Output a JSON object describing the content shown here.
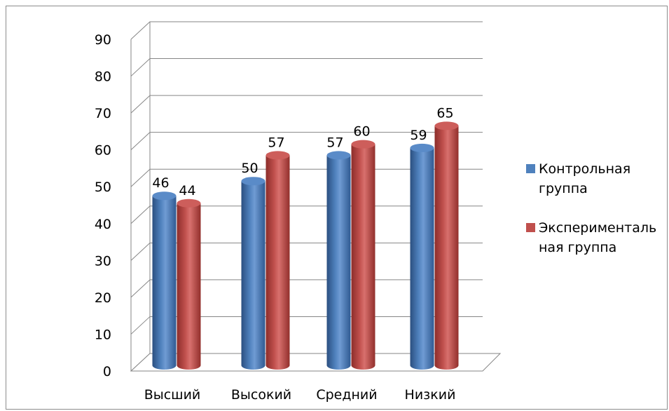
{
  "chart_data": {
    "type": "bar",
    "categories": [
      "Высший",
      "Высокий",
      "Средний",
      "Низкий"
    ],
    "series": [
      {
        "name": "Контрольная группа",
        "values": [
          46,
          50,
          57,
          59
        ],
        "color": "#4f81bd"
      },
      {
        "name": "Экспериментальная группа",
        "values": [
          44,
          57,
          60,
          65
        ],
        "color": "#c0504d"
      }
    ],
    "ylim": [
      0,
      90
    ],
    "yticks": [
      "0",
      "10",
      "20",
      "30",
      "40",
      "50",
      "60",
      "70",
      "80",
      "90"
    ],
    "grid": true,
    "legend": "right",
    "style": "3d-cylinder",
    "data_labels": true
  },
  "legend": {
    "items": [
      {
        "line1": "Контрольная",
        "line2": "группа"
      },
      {
        "line1": "Эксперименталь",
        "line2": "ная группа"
      }
    ]
  }
}
